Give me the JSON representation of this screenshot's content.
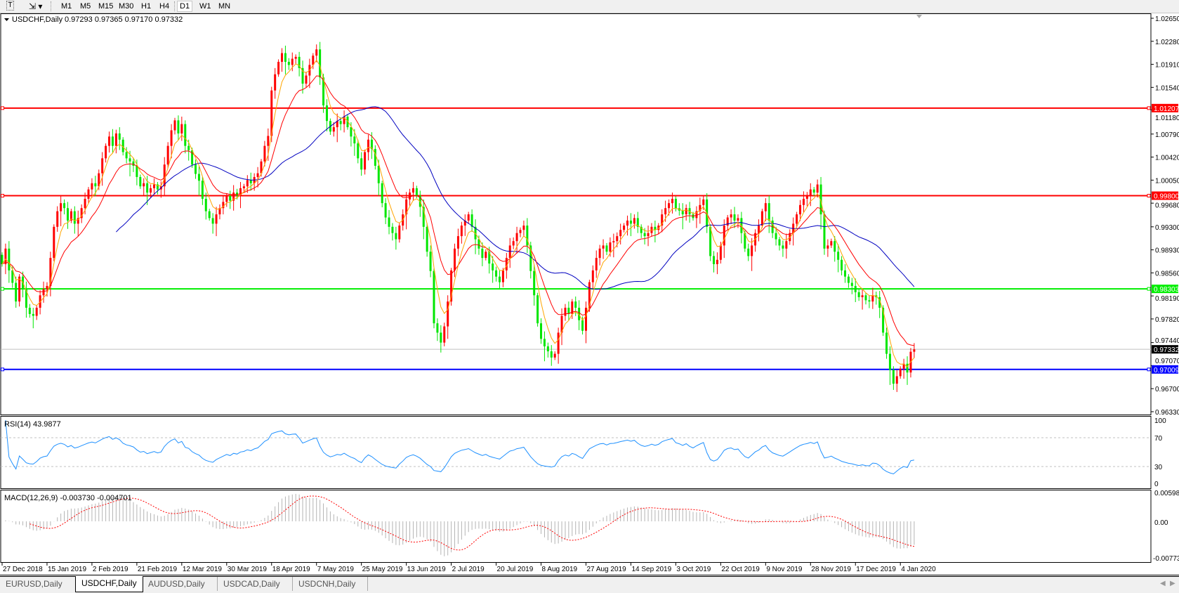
{
  "toolbar": {
    "icons": [
      "text-tool-icon",
      "objects-dropdown-icon"
    ],
    "timeframes": [
      "M1",
      "M5",
      "M15",
      "M30",
      "H1",
      "H4",
      "D1",
      "W1",
      "MN"
    ],
    "active_timeframe": "D1"
  },
  "chart_header": {
    "symbol": "USDCHF,Daily",
    "ohlc": "0.97293 0.97365 0.97170 0.97332"
  },
  "rsi": {
    "label": "RSI(14) 43.9877",
    "levels": [
      "100",
      "70",
      "30",
      "0"
    ]
  },
  "macd": {
    "label": "MACD(12,26,9) -0.003730 -0.004701",
    "levels": [
      "0.005986",
      "0.00",
      "-0.00773"
    ]
  },
  "price_axis": [
    "1.02650",
    "1.02280",
    "1.01910",
    "1.01540",
    "1.01180",
    "1.00790",
    "1.00420",
    "1.00050",
    "0.99680",
    "0.99300",
    "0.98930",
    "0.98560",
    "0.98190",
    "0.97820",
    "0.97440",
    "0.97070",
    "0.96700",
    "0.96330"
  ],
  "hlines": [
    {
      "price": "1.01207",
      "color": "#ff0000"
    },
    {
      "price": "0.99800",
      "color": "#ff0000"
    },
    {
      "price": "0.98303",
      "color": "#00ee00"
    },
    {
      "price": "0.97009",
      "color": "#0000ff"
    }
  ],
  "current_price": {
    "price": "0.97332",
    "color": "#000000"
  },
  "colors": {
    "bull": "#ff0000",
    "bear": "#00e600",
    "ma_fast": "#ffa500",
    "ma_mid": "#ff0000",
    "ma_slow": "#0000c0",
    "rsi": "#1e90ff",
    "macd_hist": "#b4b4b4",
    "macd_signal": "#ff0000"
  },
  "chart_data": {
    "type": "candlestick",
    "title": "USDCHF,Daily",
    "ylim": [
      0.9633,
      1.0265
    ],
    "x_tick_labels": [
      "27 Dec 2018",
      "15 Jan 2019",
      "2 Feb 2019",
      "21 Feb 2019",
      "12 Mar 2019",
      "30 Mar 2019",
      "18 Apr 2019",
      "7 May 2019",
      "25 May 2019",
      "13 Jun 2019",
      "2 Jul 2019",
      "20 Jul 2019",
      "8 Aug 2019",
      "27 Aug 2019",
      "14 Sep 2019",
      "3 Oct 2019",
      "22 Oct 2019",
      "9 Nov 2019",
      "28 Nov 2019",
      "17 Dec 2019",
      "4 Jan 2020"
    ],
    "closes": [
      0.987,
      0.9895,
      0.986,
      0.984,
      0.981,
      0.985,
      0.983,
      0.98,
      0.979,
      0.9787,
      0.98,
      0.982,
      0.983,
      0.9835,
      0.988,
      0.993,
      0.9955,
      0.9968,
      0.996,
      0.994,
      0.9955,
      0.9935,
      0.9944,
      0.996,
      0.9975,
      0.999,
      1.0,
      0.9995,
      1.0016,
      1.004,
      1.006,
      1.0075,
      1.006,
      1.008,
      1.007,
      1.005,
      1.004,
      1.0035,
      1.0028,
      1.001,
      0.9995,
      1.0,
      0.9985,
      0.9992,
      0.9998,
      0.999,
      0.9995,
      1.003,
      1.006,
      1.0085,
      1.0101,
      1.008,
      1.0095,
      1.006,
      1.0053,
      1.003,
      1.0015,
      1.0004,
      0.9975,
      0.9955,
      0.9944,
      0.9935,
      0.995,
      0.996,
      0.997,
      0.998,
      0.9972,
      0.9985,
      0.998,
      0.9992,
      0.9995,
      1.0005,
      1.0,
      1.001,
      1.0016,
      1.0035,
      1.006,
      1.0076,
      1.0149,
      1.0175,
      1.0195,
      1.0209,
      1.0195,
      1.019,
      1.02,
      1.0203,
      1.0185,
      1.016,
      1.0173,
      1.019,
      1.0205,
      1.0215,
      1.017,
      1.0125,
      1.01,
      1.0083,
      1.009,
      1.01,
      1.0095,
      1.0107,
      1.009,
      1.0075,
      1.0064,
      1.004,
      1.0022,
      1.005,
      1.007,
      1.0055,
      1.0028,
      1.0,
      0.9968,
      0.9945,
      0.993,
      0.992,
      0.991,
      0.9932,
      0.995,
      0.9974,
      0.9985,
      0.9992,
      0.998,
      0.9962,
      0.993,
      0.989,
      0.9859,
      0.9775,
      0.976,
      0.9744,
      0.977,
      0.981,
      0.986,
      0.9895,
      0.9915,
      0.9932,
      0.994,
      0.995,
      0.993,
      0.991,
      0.9895,
      0.988,
      0.989,
      0.9871,
      0.986,
      0.985,
      0.9841,
      0.986,
      0.988,
      0.99,
      0.9907,
      0.992,
      0.9925,
      0.9932,
      0.99,
      0.9859,
      0.982,
      0.9775,
      0.975,
      0.9738,
      0.973,
      0.972,
      0.9726,
      0.976,
      0.9787,
      0.98,
      0.979,
      0.981,
      0.98,
      0.978,
      0.9763,
      0.98,
      0.9841,
      0.986,
      0.988,
      0.9895,
      0.99,
      0.989,
      0.9905,
      0.9907,
      0.9915,
      0.9925,
      0.9932,
      0.994,
      0.9935,
      0.9944,
      0.993,
      0.992,
      0.9915,
      0.992,
      0.993,
      0.9925,
      0.9932,
      0.995,
      0.996,
      0.9968,
      0.9975,
      0.996,
      0.9956,
      0.995,
      0.996,
      0.995,
      0.9944,
      0.9955,
      0.9965,
      0.9974,
      0.993,
      0.9883,
      0.987,
      0.9877,
      0.99,
      0.9932,
      0.9945,
      0.995,
      0.994,
      0.9944,
      0.992,
      0.9895,
      0.9883,
      0.99,
      0.992,
      0.9932,
      0.9955,
      0.9968,
      0.994,
      0.992,
      0.991,
      0.99,
      0.9895,
      0.9907,
      0.992,
      0.9935,
      0.995,
      0.9965,
      0.9975,
      0.998,
      0.999,
      0.9985,
      0.9998,
      0.995,
      0.9895,
      0.99,
      0.9907,
      0.989,
      0.9877,
      0.986,
      0.985,
      0.984,
      0.9835,
      0.9825,
      0.9817,
      0.982,
      0.9812,
      0.981,
      0.982,
      0.9817,
      0.98,
      0.976,
      0.9726,
      0.97,
      0.9678,
      0.969,
      0.9702,
      0.971,
      0.9696,
      0.97293,
      0.97332
    ]
  },
  "tabs": [
    {
      "label": "EURUSD,Daily",
      "active": false
    },
    {
      "label": "USDCHF,Daily",
      "active": true
    },
    {
      "label": "AUDUSD,Daily",
      "active": false
    },
    {
      "label": "USDCAD,Daily",
      "active": false
    },
    {
      "label": "USDCNH,Daily",
      "active": false
    }
  ]
}
